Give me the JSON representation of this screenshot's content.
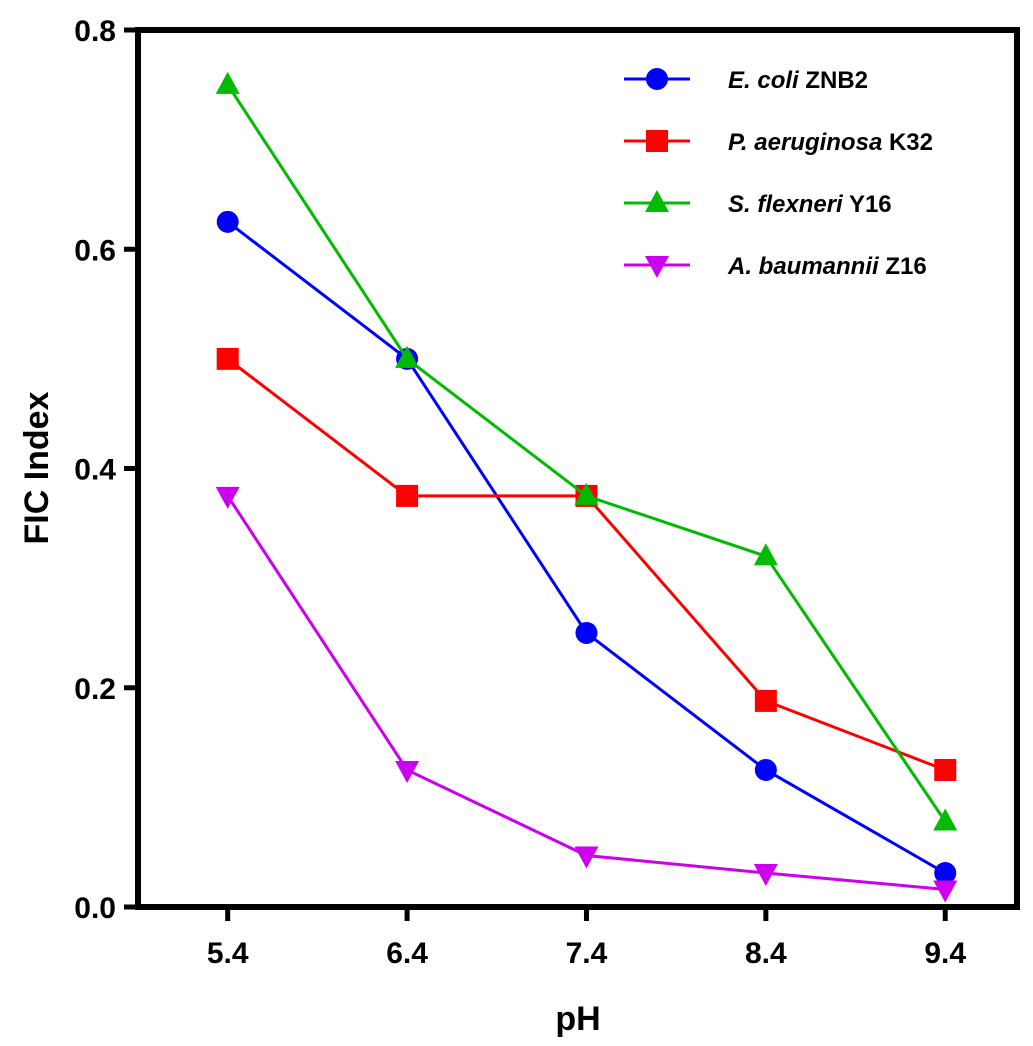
{
  "chart_data": {
    "type": "line",
    "title": "",
    "xlabel": "pH",
    "ylabel": "FIC Index",
    "x": [
      5.4,
      6.4,
      7.4,
      8.4,
      9.4
    ],
    "x_tick_labels": [
      "5.4",
      "6.4",
      "7.4",
      "8.4",
      "9.4"
    ],
    "xlim": [
      4.9,
      9.8
    ],
    "ylim": [
      0.0,
      0.8
    ],
    "y_ticks": [
      0.0,
      0.2,
      0.4,
      0.6,
      0.8
    ],
    "y_tick_labels": [
      "0.0",
      "0.2",
      "0.4",
      "0.6",
      "0.8"
    ],
    "grid": false,
    "legend_position": "top-right",
    "series": [
      {
        "name": "E. coli ZNB2",
        "species": "E. coli",
        "strain": "ZNB2",
        "color": "#0000ff",
        "marker": "circle",
        "values": [
          0.625,
          0.5,
          0.25,
          0.125,
          0.031
        ]
      },
      {
        "name": "P. aeruginosa K32",
        "species": "P. aeruginosa",
        "strain": "K32",
        "color": "#ff0000",
        "marker": "square",
        "values": [
          0.5,
          0.375,
          0.375,
          0.188,
          0.125
        ]
      },
      {
        "name": "S. flexneri Y16",
        "species": "S. flexneri",
        "strain": "Y16",
        "color": "#00bb00",
        "marker": "triangle-up",
        "values": [
          0.75,
          0.5,
          0.375,
          0.32,
          0.078
        ]
      },
      {
        "name": "A. baumannii Z16",
        "species": "A. baumannii",
        "strain": "Z16",
        "color": "#cc00ee",
        "marker": "triangle-down",
        "values": [
          0.375,
          0.125,
          0.047,
          0.031,
          0.016
        ]
      }
    ]
  }
}
